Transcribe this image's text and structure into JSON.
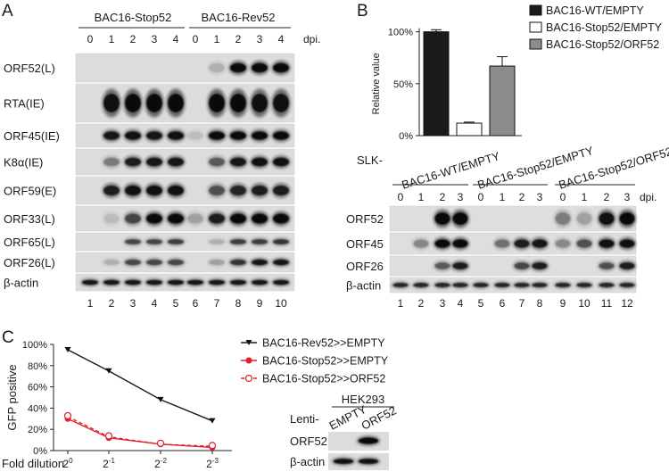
{
  "panel_a": {
    "letter": "A",
    "group_labels": [
      "BAC16-Stop52",
      "BAC16-Rev52"
    ],
    "dpi_values": [
      "0",
      "1",
      "2",
      "3",
      "4",
      "0",
      "1",
      "2",
      "3",
      "4"
    ],
    "dpi_unit": "dpi.",
    "rows": [
      "ORF52(L)",
      "RTA(IE)",
      "ORF45(IE)",
      "K8α(IE)",
      "ORF59(E)",
      "ORF33(L)",
      "ORF65(L)",
      "ORF26(L)",
      "β-actin"
    ],
    "lane_numbers": [
      "1",
      "2",
      "3",
      "4",
      "5",
      "6",
      "7",
      "8",
      "9",
      "10"
    ]
  },
  "panel_b": {
    "letter": "B",
    "chart_data": {
      "type": "bar",
      "categories": [
        "BAC16-WT/EMPTY",
        "BAC16-Stop52/EMPTY",
        "BAC16-Stop52/ORF52"
      ],
      "values": [
        100,
        12,
        67
      ],
      "errors": [
        2,
        1,
        9
      ],
      "ylabel": "Relative value",
      "yticks": [
        "0%",
        "50%",
        "100%"
      ],
      "ylim": [
        0,
        110
      ],
      "colors": [
        "#1a1a1a",
        "#ffffff",
        "#8c8c8c"
      ]
    },
    "legend": [
      "BAC16-WT/EMPTY",
      "BAC16-Stop52/EMPTY",
      "BAC16-Stop52/ORF52"
    ],
    "blot_prefix": "SLK-",
    "group_labels": [
      "BAC16-WT/EMPTY",
      "BAC16-Stop52/EMPTY",
      "BAC16-Stop52/ORF52"
    ],
    "dpi_values": [
      "0",
      "1",
      "2",
      "3",
      "0",
      "1",
      "2",
      "3",
      "0",
      "1",
      "2",
      "3"
    ],
    "dpi_unit": "dpi.",
    "rows": [
      "ORF52",
      "ORF45",
      "ORF26",
      "β-actin"
    ],
    "lane_numbers": [
      "1",
      "2",
      "3",
      "4",
      "5",
      "6",
      "7",
      "8",
      "9",
      "10",
      "11",
      "12"
    ]
  },
  "panel_c": {
    "letter": "C",
    "chart_data": {
      "type": "line",
      "x": [
        "2^0",
        "2^-1",
        "2^-2",
        "2^-3"
      ],
      "series": [
        {
          "name": "BAC16-Rev52>>EMPTY",
          "values": [
            95,
            75,
            48,
            28
          ],
          "color": "#1a1a1a"
        },
        {
          "name": "BAC16-Stop52>>EMPTY",
          "values": [
            30,
            12,
            6,
            3
          ],
          "color": "#e0202a"
        },
        {
          "name": "BAC16-Stop52>>ORF52",
          "values": [
            32,
            13,
            6,
            4
          ],
          "color": "#e0202a"
        }
      ],
      "ylabel": "GFP positive",
      "xlabel": "Fold dilution",
      "yticks": [
        "0%",
        "20%",
        "40%",
        "60%",
        "80%",
        "100%"
      ],
      "ylim": [
        0,
        100
      ]
    },
    "blot": {
      "cell_line": "HEK293",
      "prefix": "Lenti-",
      "lanes": [
        "EMPTY",
        "ORF52"
      ],
      "rows": [
        "ORF52",
        "β-actin"
      ]
    }
  }
}
